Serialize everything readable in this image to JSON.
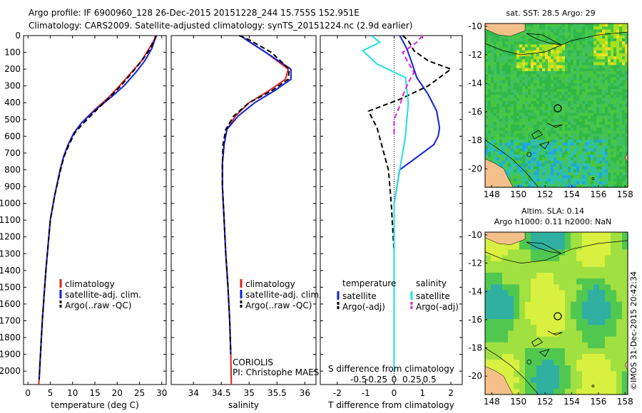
{
  "header": {
    "title_line1": "Argo profile: IF 6900960_128 26-Dec-2015 20151228_244 15.755S 152.951E",
    "title_line2": "Climatology: CARS2009. Satellite-adjusted climatology: synTS_20151224.nc (2.9d earlier)"
  },
  "colors": {
    "climatology": "#e02020",
    "satellite_adj": "#1020e0",
    "argo": "#000000",
    "satellite_salinity": "#20e0e0",
    "argo_salinity": "#e020e0",
    "land": "#f4c08a"
  },
  "chart_data": [
    {
      "name": "temperature-profile",
      "type": "line",
      "xlabel": "temperature (deg C)",
      "ylabel": "",
      "xlim": [
        -1,
        31
      ],
      "ylim": [
        2080,
        0
      ],
      "xticks": [
        0,
        5,
        10,
        15,
        20,
        25,
        30
      ],
      "yticks": [
        0,
        100,
        200,
        300,
        400,
        500,
        600,
        700,
        800,
        900,
        1000,
        1100,
        1200,
        1300,
        1400,
        1500,
        1600,
        1700,
        1800,
        1900,
        2000
      ],
      "legend": [
        "climatology",
        "satellite-adj. clim.",
        "Argo(..raw -QC)"
      ],
      "series": [
        {
          "name": "climatology",
          "style": "solid",
          "color": "#e02020",
          "x": [
            28.6,
            28.4,
            27.2,
            25.5,
            23.0,
            20.5,
            18.0,
            15.0,
            12.0,
            10.3,
            9.0,
            8.0,
            7.2,
            6.0,
            5.0,
            4.5,
            4.0,
            3.6,
            3.2,
            2.9,
            2.7,
            2.5,
            2.4
          ],
          "y": [
            0,
            20,
            75,
            150,
            225,
            300,
            370,
            440,
            520,
            580,
            650,
            720,
            800,
            950,
            1100,
            1250,
            1400,
            1550,
            1700,
            1850,
            1950,
            2050,
            2080
          ]
        },
        {
          "name": "satellite-adj. clim.",
          "style": "solid",
          "color": "#1020e0",
          "x": [
            28.8,
            28.5,
            27.8,
            26.2,
            24.0,
            21.5,
            18.5,
            15.2,
            12.0,
            10.3,
            9.0,
            8.0,
            7.2,
            6.0,
            5.0,
            4.5,
            4.0,
            3.6,
            3.2,
            2.9,
            2.7,
            2.5
          ],
          "y": [
            0,
            20,
            75,
            150,
            225,
            300,
            370,
            440,
            520,
            580,
            650,
            720,
            800,
            950,
            1100,
            1250,
            1400,
            1550,
            1700,
            1850,
            1950,
            2050
          ]
        },
        {
          "name": "Argo(..raw -QC)",
          "style": "dashed",
          "color": "#000000",
          "x": [
            28.7,
            28.5,
            27.5,
            25.5,
            23.2,
            20.8,
            18.2,
            15.5,
            12.5,
            10.5,
            9.2,
            8.1,
            7.3,
            6.0,
            5.0,
            4.5,
            4.0,
            3.6,
            3.2,
            2.9,
            2.7,
            2.5
          ],
          "y": [
            0,
            20,
            75,
            150,
            225,
            300,
            370,
            440,
            520,
            580,
            650,
            720,
            800,
            950,
            1100,
            1250,
            1400,
            1550,
            1700,
            1850,
            1950,
            2050
          ]
        }
      ]
    },
    {
      "name": "salinity-profile",
      "type": "line",
      "xlabel": "salinity",
      "ylabel": "",
      "xlim": [
        33.6,
        36.2
      ],
      "ylim": [
        2080,
        0
      ],
      "xticks": [
        34,
        34.5,
        35,
        35.5,
        36
      ],
      "xtick_labels": [
        "34",
        "34.5",
        "35",
        "35.5",
        "36"
      ],
      "legend": [
        "climatology",
        "satellite-adj. clim.",
        "Argo(..raw -QC)"
      ],
      "annotation": [
        "CORIOLIS",
        "PI: Christophe MAES"
      ],
      "series": [
        {
          "name": "climatology",
          "style": "solid",
          "color": "#e02020",
          "x": [
            34.85,
            34.95,
            35.3,
            35.7,
            35.65,
            35.35,
            35.0,
            34.75,
            34.6,
            34.55,
            34.52,
            34.52,
            34.55,
            34.58,
            34.62,
            34.65,
            34.67,
            34.68
          ],
          "y": [
            0,
            25,
            100,
            200,
            260,
            330,
            400,
            480,
            560,
            650,
            760,
            900,
            1100,
            1300,
            1500,
            1700,
            1900,
            2080
          ]
        },
        {
          "name": "satellite-adj. clim.",
          "style": "solid",
          "color": "#1020e0",
          "x": [
            34.85,
            34.95,
            35.3,
            35.75,
            35.75,
            35.45,
            35.1,
            34.8,
            34.6,
            34.55,
            34.52,
            34.52,
            34.55,
            34.58,
            34.62,
            34.65,
            34.67
          ],
          "y": [
            0,
            25,
            100,
            200,
            260,
            330,
            400,
            480,
            560,
            650,
            760,
            900,
            1100,
            1300,
            1500,
            1700,
            1900
          ]
        },
        {
          "name": "Argo(..raw -QC)",
          "style": "dashed",
          "color": "#000000",
          "x": [
            34.82,
            35.0,
            35.4,
            35.72,
            35.7,
            35.4,
            35.0,
            34.72,
            34.58,
            34.53,
            34.52,
            34.52,
            34.55,
            34.58,
            34.62,
            34.65,
            34.67
          ],
          "y": [
            0,
            25,
            100,
            200,
            260,
            330,
            400,
            480,
            560,
            650,
            760,
            900,
            1100,
            1300,
            1500,
            1700,
            1900
          ]
        }
      ]
    },
    {
      "name": "difference-profile",
      "type": "line",
      "xlabel": "T difference from climatology",
      "top_label": "S difference from climatology",
      "xlim": [
        -2.6,
        2.4
      ],
      "ylim": [
        2080,
        0
      ],
      "xticks": [
        -2,
        -1,
        0,
        1,
        2
      ],
      "top_ticks": [
        -0.5,
        -0.25,
        0,
        0.25,
        0.5
      ],
      "legend_titles": [
        "temperature",
        "salinity"
      ],
      "legend": [
        "satellite",
        "Argo(-adj)",
        "satellite",
        "Argo(-adj)"
      ],
      "series": [
        {
          "name": "temperature satellite",
          "style": "solid",
          "color": "#1020e0",
          "x": [
            0.2,
            0.3,
            0.45,
            0.6,
            0.8,
            1.2,
            1.5,
            1.6,
            1.55,
            1.4,
            1.0,
            0.2,
            0.0,
            0.0,
            0.0
          ],
          "y": [
            0,
            30,
            80,
            150,
            250,
            350,
            450,
            550,
            600,
            650,
            700,
            800,
            1000,
            1500,
            2000
          ]
        },
        {
          "name": "temperature Argo(-adj)",
          "style": "dashed",
          "color": "#000000",
          "x": [
            0.3,
            0.5,
            0.7,
            1.2,
            2.0,
            1.2,
            0.2,
            -0.9,
            -0.6,
            -0.2,
            -0.1,
            0.0,
            0.0
          ],
          "y": [
            0,
            30,
            90,
            150,
            200,
            300,
            380,
            450,
            550,
            800,
            1000,
            1300,
            2000
          ]
        },
        {
          "name": "salinity satellite",
          "style": "solid",
          "color": "#20e0e0",
          "x": [
            -0.8,
            -0.5,
            -1.1,
            -0.6,
            0.4,
            0.5,
            0.4,
            0.2,
            0.0,
            0.0
          ],
          "y": [
            0,
            40,
            90,
            170,
            250,
            400,
            600,
            800,
            1000,
            2000
          ]
        },
        {
          "name": "salinity Argo(-adj)",
          "style": "dashed",
          "color": "#e020e0",
          "x": [
            1.0,
            0.8,
            0.3,
            0.7,
            0.5,
            0.3,
            0.2,
            0.0,
            0.0
          ],
          "y": [
            0,
            40,
            100,
            220,
            280,
            360,
            420,
            500,
            600
          ]
        }
      ]
    },
    {
      "name": "sst-map",
      "type": "heatmap",
      "title": "sat. SST: 28.5 Argo: 29",
      "xlim": [
        147.5,
        158.2
      ],
      "ylim": [
        -21.3,
        -9.8
      ],
      "xticks": [
        148,
        150,
        152,
        154,
        156,
        158
      ],
      "yticks": [
        -10,
        -12,
        -14,
        -16,
        -18,
        -20
      ],
      "argo_position": {
        "lon": 152.951,
        "lat": -15.755
      }
    },
    {
      "name": "sla-map",
      "type": "heatmap",
      "title_line1": "Altim. SLA: 0.14",
      "title_line2": "Argo h1000: 0.11 h2000: NaN",
      "xlim": [
        147.5,
        158.2
      ],
      "ylim": [
        -21.3,
        -9.8
      ],
      "xticks": [
        148,
        150,
        152,
        154,
        156,
        158
      ],
      "yticks": [
        -10,
        -12,
        -14,
        -16,
        -18,
        -20
      ],
      "argo_position": {
        "lon": 152.951,
        "lat": -15.755
      }
    }
  ],
  "footer": {
    "credit": "©IMOS 31-Dec-2015 20:42:34"
  }
}
